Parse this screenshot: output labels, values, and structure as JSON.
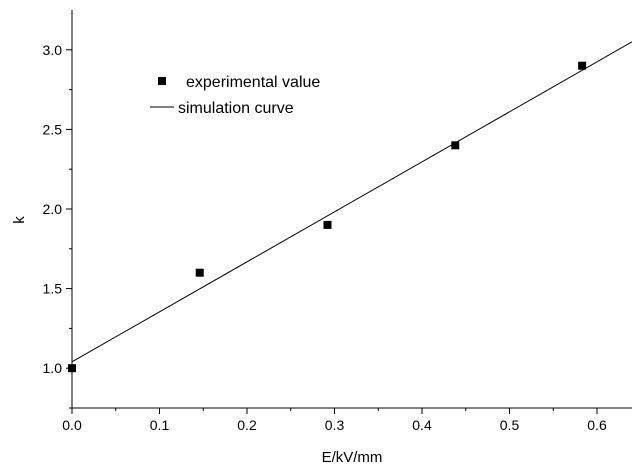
{
  "chart_data": {
    "type": "scatter",
    "xlabel": "E/kV/mm",
    "ylabel": "k",
    "xlim": [
      0.0,
      0.64
    ],
    "ylim": [
      0.75,
      3.25
    ],
    "x_ticks": [
      0.0,
      0.1,
      0.2,
      0.3,
      0.4,
      0.5,
      0.6
    ],
    "x_tick_labels": [
      "0.0",
      "0.1",
      "0.2",
      "0.3",
      "0.4",
      "0.5",
      "0.6"
    ],
    "y_ticks": [
      1.0,
      1.5,
      2.0,
      2.5,
      3.0
    ],
    "y_tick_labels": [
      "1.0",
      "1.5",
      "2.0",
      "2.5",
      "3.0"
    ],
    "grid": false,
    "legend_position": "top-left",
    "series": [
      {
        "name": "experimental value",
        "type": "scatter",
        "marker": "square",
        "x": [
          0.0,
          0.146,
          0.292,
          0.438,
          0.583
        ],
        "y": [
          1.0,
          1.6,
          1.9,
          2.4,
          2.9
        ]
      },
      {
        "name": "simulation curve",
        "type": "line",
        "x": [
          0.0,
          0.64
        ],
        "y": [
          1.04,
          3.05
        ]
      }
    ]
  }
}
